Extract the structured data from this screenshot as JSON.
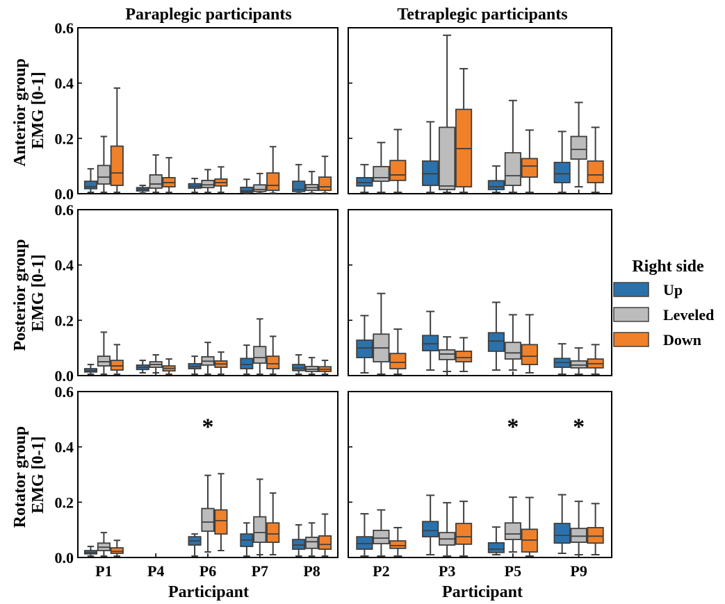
{
  "figure": {
    "columns": [
      "Paraplegic participants",
      "Tetraplegic participants"
    ],
    "row_ylabels": [
      [
        "Anterior group",
        "EMG [0-1]"
      ],
      [
        "Posterior group",
        "EMG [0-1]"
      ],
      [
        "Rotator group",
        "EMG [0-1]"
      ]
    ],
    "xlabel": "Participant",
    "legend_title": "Right side",
    "legend_entries": [
      "Up",
      "Leveled",
      "Down"
    ],
    "colors": {
      "Up": "#2b72ac",
      "Leveled": "#bcbcbc",
      "Down": "#f0812a"
    },
    "ytick_labels": [
      "0.0",
      "0.2",
      "0.4",
      "0.6"
    ],
    "significance_marker": "*"
  },
  "chart_data": [
    {
      "type": "box",
      "row": 0,
      "col": 0,
      "ylim": [
        0,
        0.6
      ],
      "categories": [
        "P1",
        "P4",
        "P6",
        "P7",
        "P8"
      ],
      "series": [
        {
          "name": "Up",
          "values": [
            [
              0.005,
              0.018,
              0.025,
              0.045,
              0.09
            ],
            [
              0.003,
              0.01,
              0.016,
              0.022,
              0.03
            ],
            [
              0.005,
              0.02,
              0.027,
              0.036,
              0.055
            ],
            [
              0.002,
              0.005,
              0.01,
              0.023,
              0.052
            ],
            [
              0.002,
              0.008,
              0.015,
              0.045,
              0.105
            ]
          ]
        },
        {
          "name": "Leveled",
          "values": [
            [
              0.005,
              0.035,
              0.06,
              0.102,
              0.207
            ],
            [
              0.005,
              0.02,
              0.035,
              0.068,
              0.14
            ],
            [
              0.005,
              0.022,
              0.032,
              0.048,
              0.087
            ],
            [
              0.002,
              0.008,
              0.015,
              0.032,
              0.073
            ],
            [
              0.002,
              0.012,
              0.022,
              0.033,
              0.08
            ]
          ]
        },
        {
          "name": "Down",
          "values": [
            [
              0.005,
              0.03,
              0.075,
              0.172,
              0.382
            ],
            [
              0.005,
              0.025,
              0.04,
              0.058,
              0.13
            ],
            [
              0.005,
              0.028,
              0.04,
              0.053,
              0.097
            ],
            [
              0.002,
              0.012,
              0.03,
              0.075,
              0.17
            ],
            [
              0.002,
              0.012,
              0.025,
              0.06,
              0.135
            ]
          ]
        }
      ],
      "significance": []
    },
    {
      "type": "box",
      "row": 0,
      "col": 1,
      "ylim": [
        0,
        0.6
      ],
      "categories": [
        "P2",
        "P3",
        "P5",
        "P9"
      ],
      "series": [
        {
          "name": "Up",
          "values": [
            [
              0.005,
              0.028,
              0.04,
              0.058,
              0.105
            ],
            [
              0.005,
              0.03,
              0.072,
              0.118,
              0.26
            ],
            [
              0.005,
              0.015,
              0.025,
              0.047,
              0.1
            ],
            [
              0.005,
              0.04,
              0.072,
              0.113,
              0.225
            ]
          ]
        },
        {
          "name": "Leveled",
          "values": [
            [
              0.005,
              0.045,
              0.058,
              0.098,
              0.185
            ],
            [
              0.005,
              0.015,
              0.028,
              0.24,
              0.573
            ],
            [
              0.005,
              0.03,
              0.065,
              0.148,
              0.337
            ],
            [
              0.025,
              0.125,
              0.16,
              0.207,
              0.33
            ]
          ]
        },
        {
          "name": "Down",
          "values": [
            [
              0.005,
              0.048,
              0.068,
              0.12,
              0.232
            ],
            [
              0.005,
              0.025,
              0.163,
              0.305,
              0.452
            ],
            [
              0.005,
              0.06,
              0.1,
              0.127,
              0.23
            ],
            [
              0.005,
              0.04,
              0.068,
              0.118,
              0.24
            ]
          ]
        }
      ],
      "significance": []
    },
    {
      "type": "box",
      "row": 1,
      "col": 0,
      "ylim": [
        0,
        0.6
      ],
      "categories": [
        "P1",
        "P4",
        "P6",
        "P7",
        "P8"
      ],
      "series": [
        {
          "name": "Up",
          "values": [
            [
              0.005,
              0.013,
              0.018,
              0.025,
              0.04
            ],
            [
              0.01,
              0.022,
              0.03,
              0.038,
              0.055
            ],
            [
              0.005,
              0.025,
              0.033,
              0.043,
              0.07
            ],
            [
              0.005,
              0.025,
              0.04,
              0.062,
              0.11
            ],
            [
              0.005,
              0.018,
              0.027,
              0.04,
              0.075
            ]
          ]
        },
        {
          "name": "Leveled",
          "values": [
            [
              0.005,
              0.035,
              0.05,
              0.07,
              0.157
            ],
            [
              0.01,
              0.03,
              0.04,
              0.05,
              0.075
            ],
            [
              0.005,
              0.038,
              0.052,
              0.068,
              0.12
            ],
            [
              0.005,
              0.045,
              0.065,
              0.105,
              0.205
            ],
            [
              0.005,
              0.015,
              0.023,
              0.033,
              0.065
            ]
          ]
        },
        {
          "name": "Down",
          "values": [
            [
              0.005,
              0.02,
              0.035,
              0.055,
              0.112
            ],
            [
              0.005,
              0.017,
              0.026,
              0.035,
              0.06
            ],
            [
              0.005,
              0.03,
              0.042,
              0.053,
              0.085
            ],
            [
              0.005,
              0.025,
              0.043,
              0.07,
              0.142
            ],
            [
              0.005,
              0.015,
              0.023,
              0.032,
              0.055
            ]
          ]
        }
      ],
      "significance": []
    },
    {
      "type": "box",
      "row": 1,
      "col": 1,
      "ylim": [
        0,
        0.6
      ],
      "categories": [
        "P2",
        "P3",
        "P5",
        "P9"
      ],
      "series": [
        {
          "name": "Up",
          "values": [
            [
              0.01,
              0.065,
              0.1,
              0.128,
              0.217
            ],
            [
              0.02,
              0.09,
              0.115,
              0.145,
              0.232
            ],
            [
              0.02,
              0.088,
              0.125,
              0.155,
              0.265
            ],
            [
              0.005,
              0.03,
              0.047,
              0.062,
              0.115
            ]
          ]
        },
        {
          "name": "Leveled",
          "values": [
            [
              0.005,
              0.05,
              0.1,
              0.15,
              0.297
            ],
            [
              0.015,
              0.058,
              0.078,
              0.093,
              0.14
            ],
            [
              0.02,
              0.06,
              0.082,
              0.12,
              0.22
            ],
            [
              0.005,
              0.028,
              0.038,
              0.053,
              0.1
            ]
          ]
        },
        {
          "name": "Down",
          "values": [
            [
              0.005,
              0.025,
              0.048,
              0.08,
              0.168
            ],
            [
              0.015,
              0.05,
              0.065,
              0.088,
              0.137
            ],
            [
              0.01,
              0.04,
              0.07,
              0.112,
              0.22
            ],
            [
              0.005,
              0.028,
              0.043,
              0.06,
              0.112
            ]
          ]
        }
      ],
      "significance": []
    },
    {
      "type": "box",
      "row": 2,
      "col": 0,
      "ylim": [
        0,
        0.6
      ],
      "categories": [
        "P1",
        "P4",
        "P6",
        "P7",
        "P8"
      ],
      "series": [
        {
          "name": "Up",
          "values": [
            [
              0.005,
              0.013,
              0.018,
              0.025,
              0.04
            ],
            null,
            [
              0.005,
              0.045,
              0.06,
              0.075,
              0.085
            ],
            [
              0.005,
              0.04,
              0.063,
              0.085,
              0.125
            ],
            [
              0.005,
              0.03,
              0.045,
              0.065,
              0.118
            ]
          ]
        },
        {
          "name": "Leveled",
          "values": [
            [
              0.005,
              0.025,
              0.037,
              0.052,
              0.09
            ],
            null,
            [
              0.02,
              0.095,
              0.128,
              0.177,
              0.297
            ],
            [
              0.01,
              0.055,
              0.09,
              0.147,
              0.283
            ],
            [
              0.005,
              0.033,
              0.057,
              0.073,
              0.125
            ]
          ]
        },
        {
          "name": "Down",
          "values": [
            [
              0.005,
              0.015,
              0.022,
              0.035,
              0.062
            ],
            null,
            [
              0.025,
              0.085,
              0.133,
              0.172,
              0.303
            ],
            [
              0.01,
              0.055,
              0.085,
              0.125,
              0.233
            ],
            [
              0.005,
              0.03,
              0.047,
              0.078,
              0.157
            ]
          ]
        }
      ],
      "significance": [
        {
          "category": "P6",
          "label": "*"
        }
      ]
    },
    {
      "type": "box",
      "row": 2,
      "col": 1,
      "ylim": [
        0,
        0.6
      ],
      "categories": [
        "P2",
        "P3",
        "P5",
        "P9"
      ],
      "series": [
        {
          "name": "Up",
          "values": [
            [
              0.005,
              0.03,
              0.05,
              0.075,
              0.158
            ],
            [
              0.01,
              0.075,
              0.097,
              0.13,
              0.225
            ],
            [
              0.01,
              0.018,
              0.03,
              0.053,
              0.11
            ],
            [
              0.015,
              0.052,
              0.08,
              0.123,
              0.227
            ]
          ]
        },
        {
          "name": "Leveled",
          "values": [
            [
              0.005,
              0.05,
              0.07,
              0.098,
              0.172
            ],
            [
              0.005,
              0.045,
              0.067,
              0.09,
              0.198
            ],
            [
              0.02,
              0.065,
              0.085,
              0.125,
              0.218
            ],
            [
              0.01,
              0.055,
              0.077,
              0.105,
              0.203
            ]
          ]
        },
        {
          "name": "Down",
          "values": [
            [
              0.005,
              0.033,
              0.043,
              0.06,
              0.108
            ],
            [
              0.005,
              0.048,
              0.075,
              0.123,
              0.203
            ],
            [
              0.005,
              0.02,
              0.063,
              0.102,
              0.217
            ],
            [
              0.01,
              0.052,
              0.077,
              0.108,
              0.195
            ]
          ]
        }
      ],
      "significance": [
        {
          "category": "P5",
          "label": "*"
        },
        {
          "category": "P9",
          "label": "*"
        }
      ]
    }
  ]
}
